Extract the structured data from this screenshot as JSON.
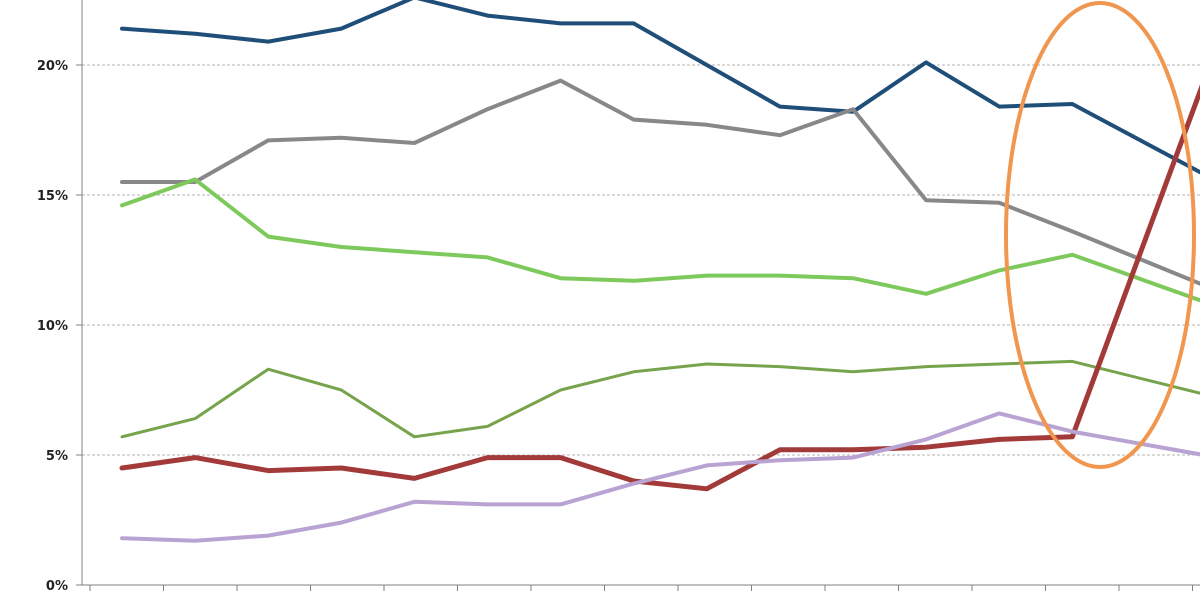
{
  "chart_data": {
    "type": "line",
    "title": "",
    "xlabel": "",
    "ylabel": "",
    "ylim": [
      0,
      22.5
    ],
    "yticks": [
      0,
      5,
      10,
      15,
      20
    ],
    "ytick_labels": [
      "0%",
      "5%",
      "10%",
      "15%",
      "20%"
    ],
    "grid": true,
    "legend": "none",
    "x": [
      1,
      2,
      3,
      4,
      5,
      6,
      7,
      8,
      9,
      10,
      11,
      12,
      13,
      14,
      15,
      16
    ],
    "series": [
      {
        "color": "#1f4e79",
        "width": 4,
        "values": [
          21.4,
          21.2,
          20.9,
          21.4,
          22.6,
          21.9,
          21.6,
          21.6,
          20.0,
          18.4,
          18.2,
          20.1,
          18.4,
          18.5,
          null,
          15.5
        ]
      },
      {
        "color": "#888888",
        "width": 4,
        "values": [
          15.5,
          15.5,
          17.1,
          17.2,
          17.0,
          18.3,
          19.4,
          17.9,
          17.7,
          17.3,
          18.3,
          14.8,
          14.7,
          13.6,
          null,
          11.3
        ]
      },
      {
        "color": "#7ec95b",
        "width": 4,
        "values": [
          14.6,
          15.6,
          13.4,
          13.0,
          12.8,
          12.6,
          11.8,
          11.7,
          11.9,
          11.9,
          11.8,
          11.2,
          12.1,
          12.7,
          null,
          10.7
        ]
      },
      {
        "color": "#76a34b",
        "width": 3,
        "values": [
          5.7,
          6.4,
          8.3,
          7.5,
          5.7,
          6.1,
          7.5,
          8.2,
          8.5,
          8.4,
          8.2,
          8.4,
          8.5,
          8.6,
          null,
          7.2
        ]
      },
      {
        "color": "#a33a3a",
        "width": 5,
        "values": [
          4.5,
          4.9,
          4.4,
          4.5,
          4.1,
          4.9,
          4.9,
          4.0,
          3.7,
          5.2,
          5.2,
          5.3,
          5.6,
          5.7,
          null,
          20.9
        ]
      },
      {
        "color": "#b9a3d3",
        "width": 4,
        "values": [
          1.8,
          1.7,
          1.9,
          2.4,
          3.2,
          3.1,
          3.1,
          3.9,
          4.6,
          4.8,
          4.9,
          5.6,
          6.6,
          5.9,
          null,
          4.9
        ]
      }
    ],
    "annotation": {
      "shape": "ellipse",
      "color": "#f0964f"
    }
  }
}
